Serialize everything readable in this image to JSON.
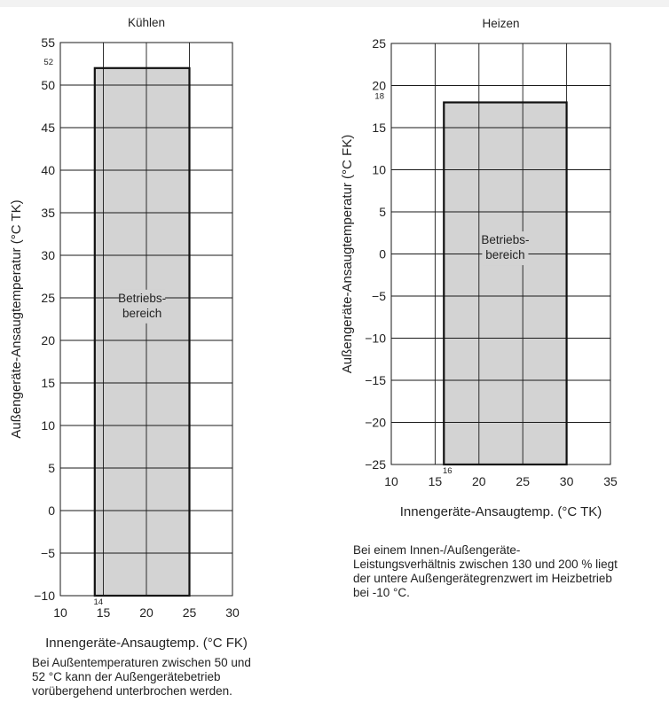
{
  "chart_data": [
    {
      "type": "area",
      "title": "Kühlen",
      "xlabel": "Innengeräte-Ansaugtemp. (°C FK)",
      "ylabel": "Außengeräte-Ansaugtemperatur (°C TK)",
      "xlim": [
        10,
        30
      ],
      "ylim": [
        -10,
        55
      ],
      "xticks": [
        10,
        15,
        20,
        25,
        30
      ],
      "yticks": [
        -10,
        -5,
        0,
        5,
        10,
        15,
        20,
        25,
        30,
        35,
        40,
        45,
        50,
        55
      ],
      "grid": true,
      "region": {
        "label": [
          "Betriebs-",
          "bereich"
        ],
        "x": [
          14,
          25
        ],
        "y": [
          -10,
          52
        ],
        "color": "#d3d3d3"
      },
      "annotations": [
        {
          "text": "52",
          "x": 10,
          "y": 52
        },
        {
          "text": "14",
          "x": 14,
          "y": -10
        }
      ]
    },
    {
      "type": "area",
      "title": "Heizen",
      "xlabel": "Innengeräte-Ansaugtemp. (°C TK)",
      "ylabel": "Außengeräte-Ansaugtemperatur (°C FK)",
      "xlim": [
        10,
        35
      ],
      "ylim": [
        -25,
        25
      ],
      "xticks": [
        10,
        15,
        20,
        25,
        30,
        35
      ],
      "yticks": [
        -25,
        -20,
        -15,
        -10,
        -5,
        0,
        5,
        10,
        15,
        20,
        25
      ],
      "grid": true,
      "region": {
        "label": [
          "Betriebs-",
          "bereich"
        ],
        "x": [
          16,
          30
        ],
        "y": [
          -25,
          18
        ],
        "color": "#d3d3d3"
      },
      "annotations": [
        {
          "text": "18",
          "x": 10,
          "y": 18
        },
        {
          "text": "16",
          "x": 16,
          "y": -25
        }
      ]
    }
  ],
  "notes": {
    "left": "Bei Außentemperaturen zwischen 50 und\n52 °C kann der Außengerätebetrieb\nvorübergehend unterbrochen werden.",
    "right": "Bei einem Innen-/Außengeräte-\nLeistungsverhältnis zwischen 130 und 200 % liegt\nder untere Außengerätegrenzwert im Heizbetrieb\nbei -10 °C."
  }
}
